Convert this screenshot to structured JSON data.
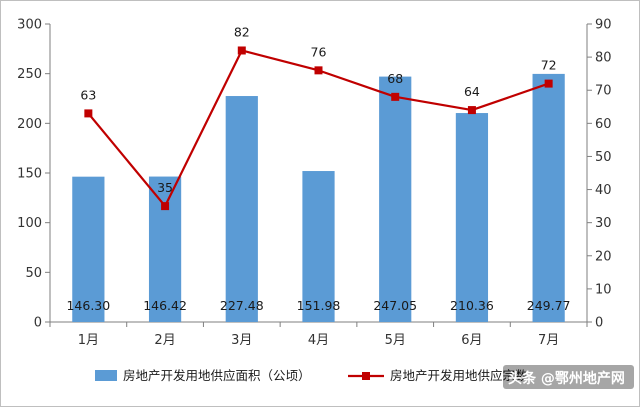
{
  "chart_data": {
    "type": "bar+line",
    "categories": [
      "1月",
      "2月",
      "3月",
      "4月",
      "5月",
      "6月",
      "7月"
    ],
    "series": [
      {
        "name": "房地产开发用地供应面积（公顷）",
        "type": "bar",
        "axis": "left",
        "color": "#5b9bd5",
        "values": [
          146.3,
          146.42,
          227.48,
          151.98,
          247.05,
          210.36,
          249.77
        ],
        "labels": [
          "146.30",
          "146.42",
          "227.48",
          "151.98",
          "247.05",
          "210.36",
          "249.77"
        ]
      },
      {
        "name": "房地产开发用地供应宗数",
        "type": "line",
        "axis": "right",
        "color": "#c00000",
        "values": [
          63,
          35,
          82,
          76,
          68,
          64,
          72
        ],
        "labels": [
          "63",
          "35",
          "82",
          "76",
          "68",
          "64",
          "72"
        ]
      }
    ],
    "y_left": {
      "min": 0,
      "max": 300,
      "ticks": [
        "0",
        "50",
        "100",
        "150",
        "200",
        "250",
        "300"
      ]
    },
    "y_right": {
      "min": 0,
      "max": 90,
      "ticks": [
        "0",
        "10",
        "20",
        "30",
        "40",
        "50",
        "60",
        "70",
        "80",
        "90"
      ]
    },
    "grid": false,
    "legend_position": "bottom"
  },
  "watermark": {
    "text": "头条 @鄂州地产网"
  }
}
